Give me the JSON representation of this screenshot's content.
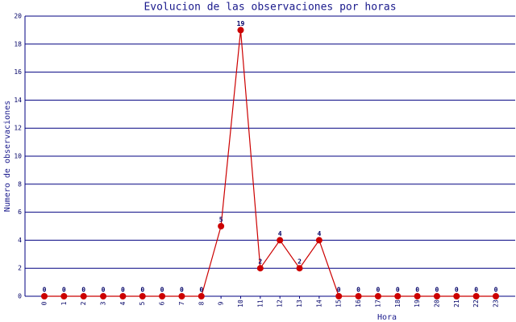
{
  "chart_data": {
    "type": "line",
    "title": "Evolucion de las observaciones por horas",
    "x_label": "Hora",
    "y_label": "Numero de observaciones",
    "categories": [
      "0",
      "1",
      "2",
      "3",
      "4",
      "5",
      "6",
      "7",
      "8",
      "9",
      "10",
      "11",
      "12",
      "13",
      "14",
      "15",
      "16",
      "17",
      "18",
      "19",
      "20",
      "21",
      "22",
      "23"
    ],
    "series": [
      {
        "name": "Observaciones",
        "color": "#cc0000",
        "values": [
          0,
          0,
          0,
          0,
          0,
          0,
          0,
          0,
          0,
          5,
          19,
          2,
          4,
          2,
          4,
          0,
          0,
          0,
          0,
          0,
          0,
          0,
          0,
          0
        ]
      }
    ],
    "ylim": [
      0,
      20
    ],
    "yticks": [
      0,
      2,
      4,
      6,
      8,
      10,
      12,
      14,
      16,
      18,
      20
    ],
    "grid": true,
    "grid_color": "#000080"
  }
}
